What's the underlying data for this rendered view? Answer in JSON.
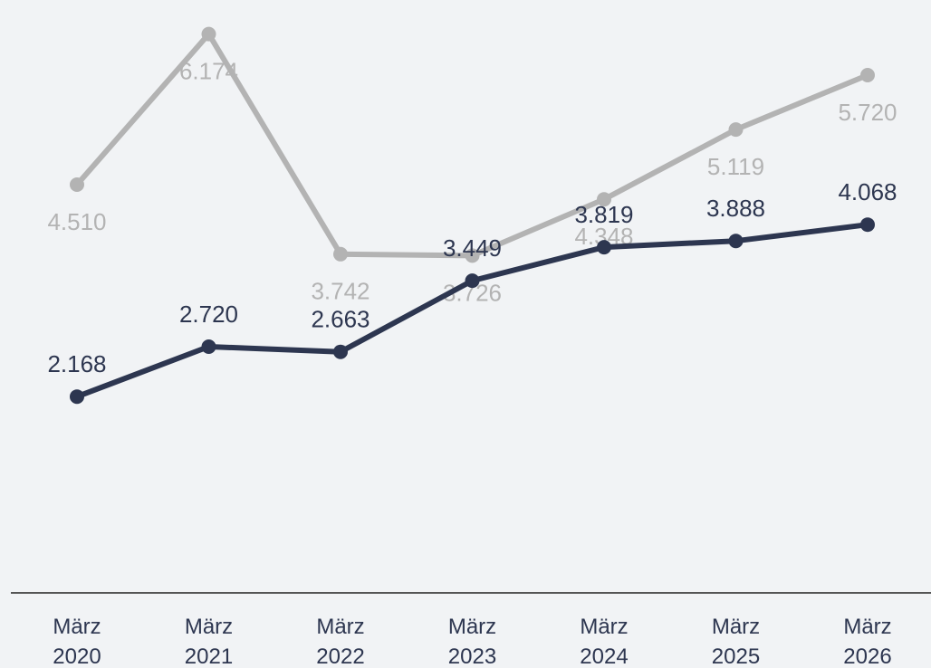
{
  "chart_data": {
    "type": "line",
    "categories": [
      "März 2020",
      "März 2021",
      "März 2022",
      "März 2023",
      "März 2024",
      "März 2025",
      "März 2026"
    ],
    "series": [
      {
        "color": "#b3b3b3",
        "values": [
          4510,
          6174,
          3742,
          3726,
          4348,
          5119,
          5720
        ],
        "value_labels": [
          "4.510",
          "6.174",
          "3.742",
          "3.726",
          "4.348",
          "5.119",
          "5.720"
        ],
        "label_side": "below"
      },
      {
        "color": "#2d3650",
        "values": [
          2168,
          2720,
          2663,
          3449,
          3819,
          3888,
          4068
        ],
        "value_labels": [
          "2.168",
          "2.720",
          "2.663",
          "3.449",
          "3.819",
          "3.888",
          "4.068"
        ],
        "label_side": "above"
      }
    ],
    "ylim": [
      0,
      6550
    ]
  }
}
